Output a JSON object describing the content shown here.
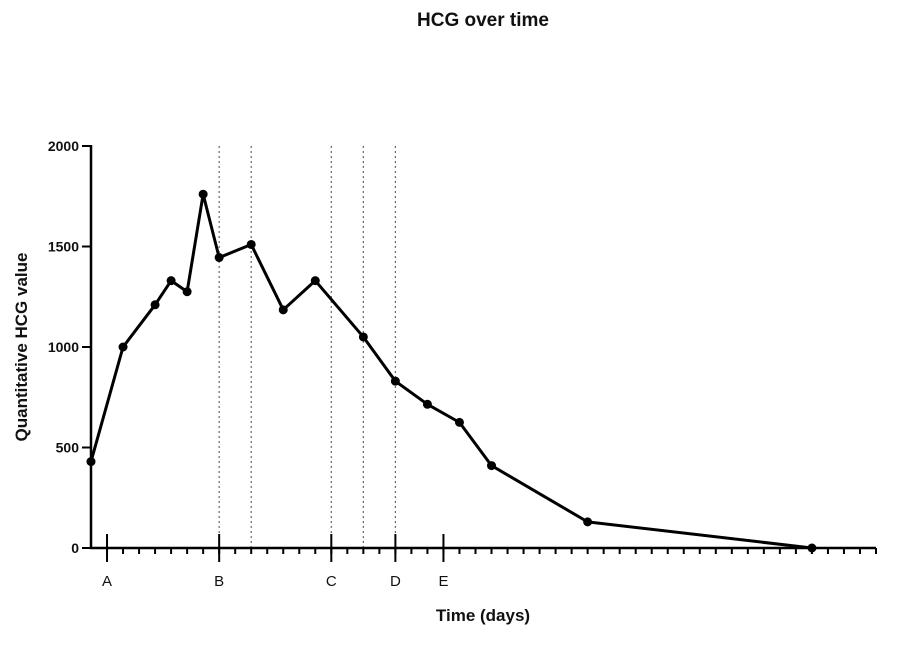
{
  "chart_data": {
    "type": "line",
    "title": "HCG over time",
    "xlabel": "Time (days)",
    "ylabel": "Quantitative HCG value",
    "ylim": [
      0,
      2000
    ],
    "yticks": [
      0,
      500,
      1000,
      1500,
      2000
    ],
    "xlim": [
      0,
      49
    ],
    "x_minor_tick_step": 1,
    "x_major_ticks": [
      1,
      8,
      15,
      19,
      22
    ],
    "grid": false,
    "legend": "none",
    "series_color": "#000000",
    "series": [
      {
        "x": [
          0,
          2,
          4,
          5,
          6,
          7,
          8,
          10,
          12,
          14,
          17,
          19,
          21,
          23,
          25,
          31,
          45
        ],
        "values": [
          430,
          1000,
          1210,
          1330,
          1275,
          1760,
          1445,
          1510,
          1185,
          1330,
          1050,
          830,
          715,
          625,
          410,
          130,
          0
        ]
      }
    ],
    "reference_lines": [
      {
        "x": 8,
        "label": "B"
      },
      {
        "x": 10,
        "label": ""
      },
      {
        "x": 15,
        "label": "C"
      },
      {
        "x": 17,
        "label": ""
      },
      {
        "x": 19,
        "label": "D"
      }
    ],
    "markers": [
      {
        "x": 1,
        "label": "A"
      },
      {
        "x": 8,
        "label": "B"
      },
      {
        "x": 15,
        "label": "C"
      },
      {
        "x": 19,
        "label": "D"
      },
      {
        "x": 22,
        "label": "E"
      }
    ]
  }
}
